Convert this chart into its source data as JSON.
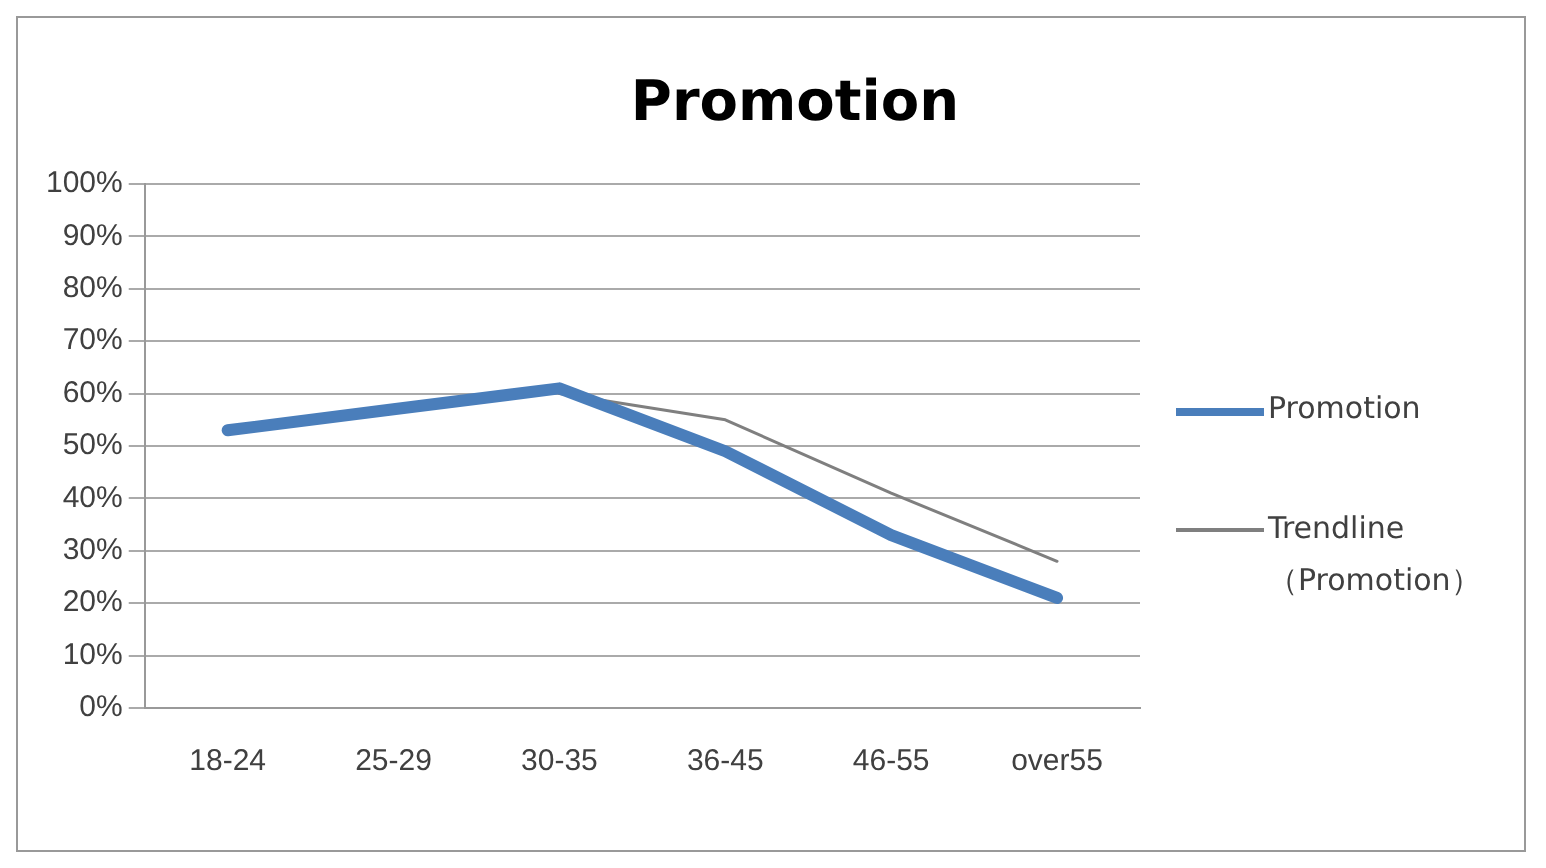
{
  "chart_data": {
    "type": "line",
    "title": "Promotion",
    "categories": [
      "18-24",
      "25-29",
      "30-35",
      "36-45",
      "46-55",
      "over55"
    ],
    "series": [
      {
        "name": "Promotion",
        "color": "#4a7ebb",
        "values": [
          53,
          57,
          61,
          49,
          33,
          21
        ]
      },
      {
        "name": "Trendline（Promotion）",
        "color": "#7f7f7f",
        "values": [
          null,
          null,
          60,
          55,
          41,
          28
        ]
      }
    ],
    "ylim": [
      0,
      100
    ],
    "yticks": [
      {
        "value": 0,
        "label": "0%"
      },
      {
        "value": 10,
        "label": "10%"
      },
      {
        "value": 20,
        "label": "20%"
      },
      {
        "value": 30,
        "label": "30%"
      },
      {
        "value": 40,
        "label": "40%"
      },
      {
        "value": 50,
        "label": "50%"
      },
      {
        "value": 60,
        "label": "60%"
      },
      {
        "value": 70,
        "label": "70%"
      },
      {
        "value": 80,
        "label": "80%"
      },
      {
        "value": 90,
        "label": "90%"
      },
      {
        "value": 100,
        "label": "100%"
      }
    ],
    "grid": "y",
    "legend": "right",
    "marker": "none",
    "line_style": "solid"
  }
}
